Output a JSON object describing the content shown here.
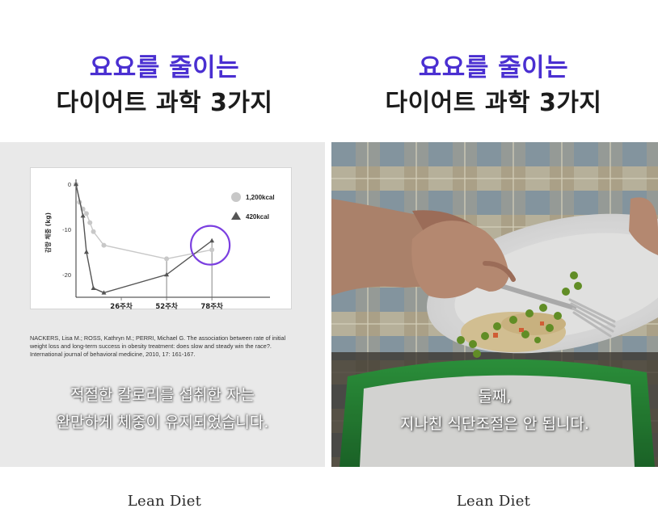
{
  "left": {
    "title_line1": "요요를 줄이는",
    "title_line2": "다이어트 과학 3가지",
    "citation": "NACKERS, Lisa M.; ROSS, Kathryn M.; PERRI, Michael G. The association between rate of initial weight loss and long-term success in obesity treatment: does slow and steady win the race?. International journal of behavioral medicine, 2010, 17: 161-167.",
    "caption_line1": "적절한 칼로리를 섭취한 자는",
    "caption_line2": "완만하게 체중이 유지되었습니다.",
    "brand": "Lean Diet"
  },
  "right": {
    "title_line1": "요요를 줄이는",
    "title_line2": "다이어트 과학 3가지",
    "caption_line1": "둘째,",
    "caption_line2": "지나친 식단조절은 안 됩니다.",
    "brand": "Lean Diet"
  },
  "colors": {
    "title_accent": "#4a2fd1",
    "highlight_circle": "#7b3fe0",
    "series_1200": "#c8c8c8",
    "series_420": "#555555"
  },
  "chart_data": {
    "type": "line",
    "ylabel": "감량 체중 (kg)",
    "ylim": [
      -25,
      0
    ],
    "yticks": [
      0,
      -10,
      -20
    ],
    "ytick_labels": [
      "0",
      "-10",
      "-20"
    ],
    "xticks": [
      26,
      52,
      78
    ],
    "xtick_labels": [
      "26주차",
      "52주차",
      "78주차"
    ],
    "xlim": [
      0,
      90
    ],
    "legend_position": "top-right",
    "grid": false,
    "series": [
      {
        "name": "1,200kcal",
        "marker": "circle",
        "points": [
          [
            0,
            0
          ],
          [
            2,
            -4
          ],
          [
            4,
            -5.5
          ],
          [
            6,
            -6.5
          ],
          [
            8,
            -8.5
          ],
          [
            10,
            -10.5
          ],
          [
            16,
            -13.5
          ],
          [
            52,
            -16.5
          ],
          [
            78,
            -14.5
          ]
        ]
      },
      {
        "name": "420kcal",
        "marker": "triangle",
        "points": [
          [
            0,
            0
          ],
          [
            4,
            -7
          ],
          [
            6,
            -15
          ],
          [
            10,
            -23
          ],
          [
            16,
            -24
          ],
          [
            52,
            -20
          ],
          [
            78,
            -12.5
          ]
        ]
      }
    ]
  }
}
